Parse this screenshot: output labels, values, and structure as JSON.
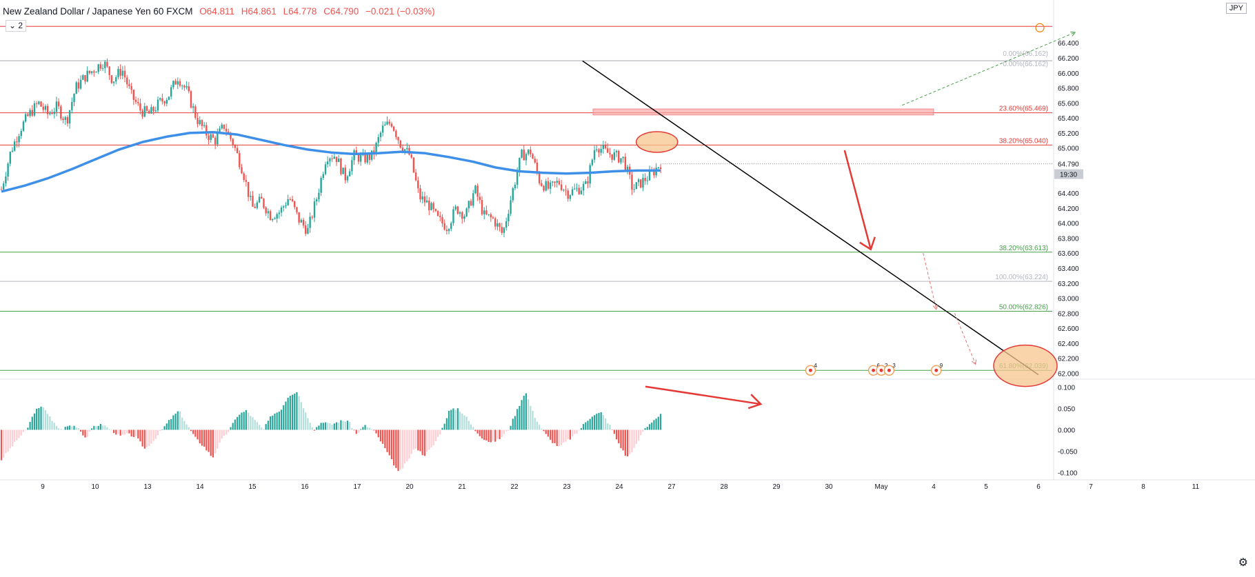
{
  "header": {
    "symbol": "New Zealand Dollar / Japanese Yen",
    "interval": "60",
    "source": "FXCM",
    "open": "O64.811",
    "high": "H64.861",
    "low": "L64.778",
    "close": "C64.790",
    "change": "−0.021 (−0.03%)",
    "indicator_count": "2"
  },
  "currency_badge": "JPY",
  "settings_icon": "gear-icon",
  "colors": {
    "up": "#26a69a",
    "down": "#ef5350",
    "ma": "#3d8fe8",
    "resistance": "#e53935",
    "support": "#43a047",
    "fib_grey": "#b2b5be",
    "trendline": "#000000",
    "highlight": "#f7c58f"
  },
  "chart_data": [
    {
      "type": "candlestick",
      "ylim": [
        61.94,
        66.76
      ],
      "y_ticks": [
        "66.400",
        "66.200",
        "66.000",
        "65.800",
        "65.600",
        "65.400",
        "65.200",
        "65.000",
        "64.800",
        "64.400",
        "64.200",
        "64.000",
        "63.800",
        "63.600",
        "63.400",
        "63.200",
        "63.000",
        "62.800",
        "62.600",
        "62.400",
        "62.200",
        "62.000"
      ],
      "x_ticks": [
        "9",
        "10",
        "13",
        "14",
        "15",
        "16",
        "17",
        "20",
        "21",
        "22",
        "23",
        "24",
        "27",
        "28",
        "29",
        "30",
        "May",
        "4",
        "5",
        "6",
        "7",
        "8",
        "11"
      ],
      "last_price": "64.790",
      "countdown": "19:30",
      "ohlc_path": [
        64.45,
        64.95,
        65.25,
        65.45,
        65.6,
        65.45,
        65.55,
        65.35,
        65.8,
        65.95,
        66.05,
        66.15,
        65.9,
        66.05,
        65.7,
        65.5,
        65.45,
        65.6,
        65.7,
        65.95,
        65.75,
        65.4,
        65.2,
        65.1,
        65.3,
        65.05,
        64.7,
        64.2,
        64.3,
        64.1,
        64.15,
        64.35,
        64.05,
        63.9,
        64.35,
        64.9,
        64.9,
        64.6,
        64.9,
        64.85,
        64.9,
        65.25,
        65.35,
        65.05,
        64.9,
        64.35,
        64.25,
        64.05,
        63.95,
        64.2,
        64.1,
        64.45,
        64.1,
        64.05,
        63.85,
        64.4,
        64.9,
        64.95,
        64.55,
        64.45,
        64.55,
        64.4,
        64.45,
        64.5,
        65.05,
        64.95,
        64.9,
        64.85,
        64.45,
        64.55,
        64.65,
        64.8
      ],
      "moving_average": {
        "period": "200",
        "values": [
          64.42,
          64.5,
          64.6,
          64.72,
          64.85,
          64.98,
          65.08,
          65.15,
          65.2,
          65.21,
          65.18,
          65.11,
          65.04,
          64.98,
          64.94,
          64.92,
          64.93,
          64.95,
          64.93,
          64.88,
          64.82,
          64.74,
          64.69,
          64.67,
          64.66,
          64.67,
          64.69,
          64.7,
          64.7
        ]
      },
      "horizontal_levels": [
        {
          "label": "",
          "value": 66.62,
          "color": "#e53935"
        },
        {
          "label": "0.00%(66.162)",
          "value": 66.162,
          "color": "#b2b5be"
        },
        {
          "label": "0.00%(66.162)",
          "value": 66.162,
          "color": "#b2b5be"
        },
        {
          "label": "23.60%(65.469)",
          "value": 65.469,
          "color": "#e53935"
        },
        {
          "label": "38.20%(65.040)",
          "value": 65.04,
          "color": "#e53935"
        },
        {
          "label": "38.20%(63.613)",
          "value": 63.613,
          "color": "#43a047"
        },
        {
          "label": "100.00%(63.224)",
          "value": 63.224,
          "color": "#b2b5be"
        },
        {
          "label": "50.00%(62.826)",
          "value": 62.826,
          "color": "#43a047"
        },
        {
          "label": "61.80%(62.039)",
          "value": 62.039,
          "color": "#43a047"
        }
      ],
      "trendline": {
        "from": [
          10.3,
          66.16
        ],
        "to": [
          19.0,
          61.98
        ]
      },
      "drawings": [
        {
          "kind": "resistance-zone",
          "x": [
            10.5,
            17.0
          ],
          "y": [
            65.44,
            65.52
          ]
        },
        {
          "kind": "ellipse",
          "x": 11.72,
          "y": 65.08
        },
        {
          "kind": "ellipse",
          "x": 18.75,
          "y": 62.1
        },
        {
          "kind": "down-arrow",
          "from": [
            15.3,
            64.97
          ],
          "to": [
            15.8,
            63.65
          ]
        },
        {
          "kind": "dashed-up",
          "from": [
            16.4,
            65.57
          ],
          "to": [
            19.7,
            66.54
          ]
        },
        {
          "kind": "dashed-down",
          "from": [
            16.8,
            63.6
          ],
          "to": [
            17.05,
            62.85
          ]
        },
        {
          "kind": "dashed-down",
          "from": [
            17.4,
            62.8
          ],
          "to": [
            17.8,
            62.12
          ]
        }
      ],
      "event_markers": [
        {
          "x": 14.65,
          "count": "4"
        },
        {
          "x": 15.85,
          "count": "6"
        },
        {
          "x": 16.0,
          "count": "2"
        },
        {
          "x": 16.15,
          "count": "3"
        },
        {
          "x": 17.05,
          "count": "9"
        }
      ]
    },
    {
      "type": "bar",
      "name": "",
      "ylim": [
        -0.115,
        0.115
      ],
      "y_ticks": [
        "0.100",
        "0.050",
        "0.000",
        "-0.050",
        "-0.100"
      ],
      "path": [
        -0.07,
        -0.045,
        -0.02,
        0.0,
        0.045,
        0.055,
        0.02,
        0.0,
        0.01,
        0.008,
        -0.02,
        0.01,
        0.012,
        0.0,
        -0.015,
        -0.01,
        -0.018,
        -0.045,
        -0.025,
        0.0,
        0.025,
        0.045,
        0.01,
        -0.02,
        -0.04,
        -0.065,
        -0.025,
        0.0,
        0.035,
        0.045,
        0.022,
        0.0,
        0.035,
        0.045,
        0.08,
        0.09,
        0.04,
        0.0,
        0.02,
        0.012,
        0.02,
        0.022,
        -0.01,
        0.01,
        0.0,
        -0.03,
        -0.065,
        -0.1,
        -0.075,
        -0.04,
        -0.06,
        -0.04,
        -0.005,
        0.045,
        0.05,
        0.03,
        0.0,
        -0.02,
        -0.03,
        -0.02,
        0.0,
        0.045,
        0.09,
        0.035,
        0.0,
        -0.025,
        -0.04,
        -0.025,
        -0.01,
        0.015,
        0.035,
        0.04,
        0.01,
        -0.03,
        -0.065,
        -0.04,
        0.0,
        0.02,
        0.035
      ],
      "arrow": {
        "from": [
          11.5,
          0.101
        ],
        "to": [
          13.7,
          0.06
        ]
      }
    }
  ]
}
